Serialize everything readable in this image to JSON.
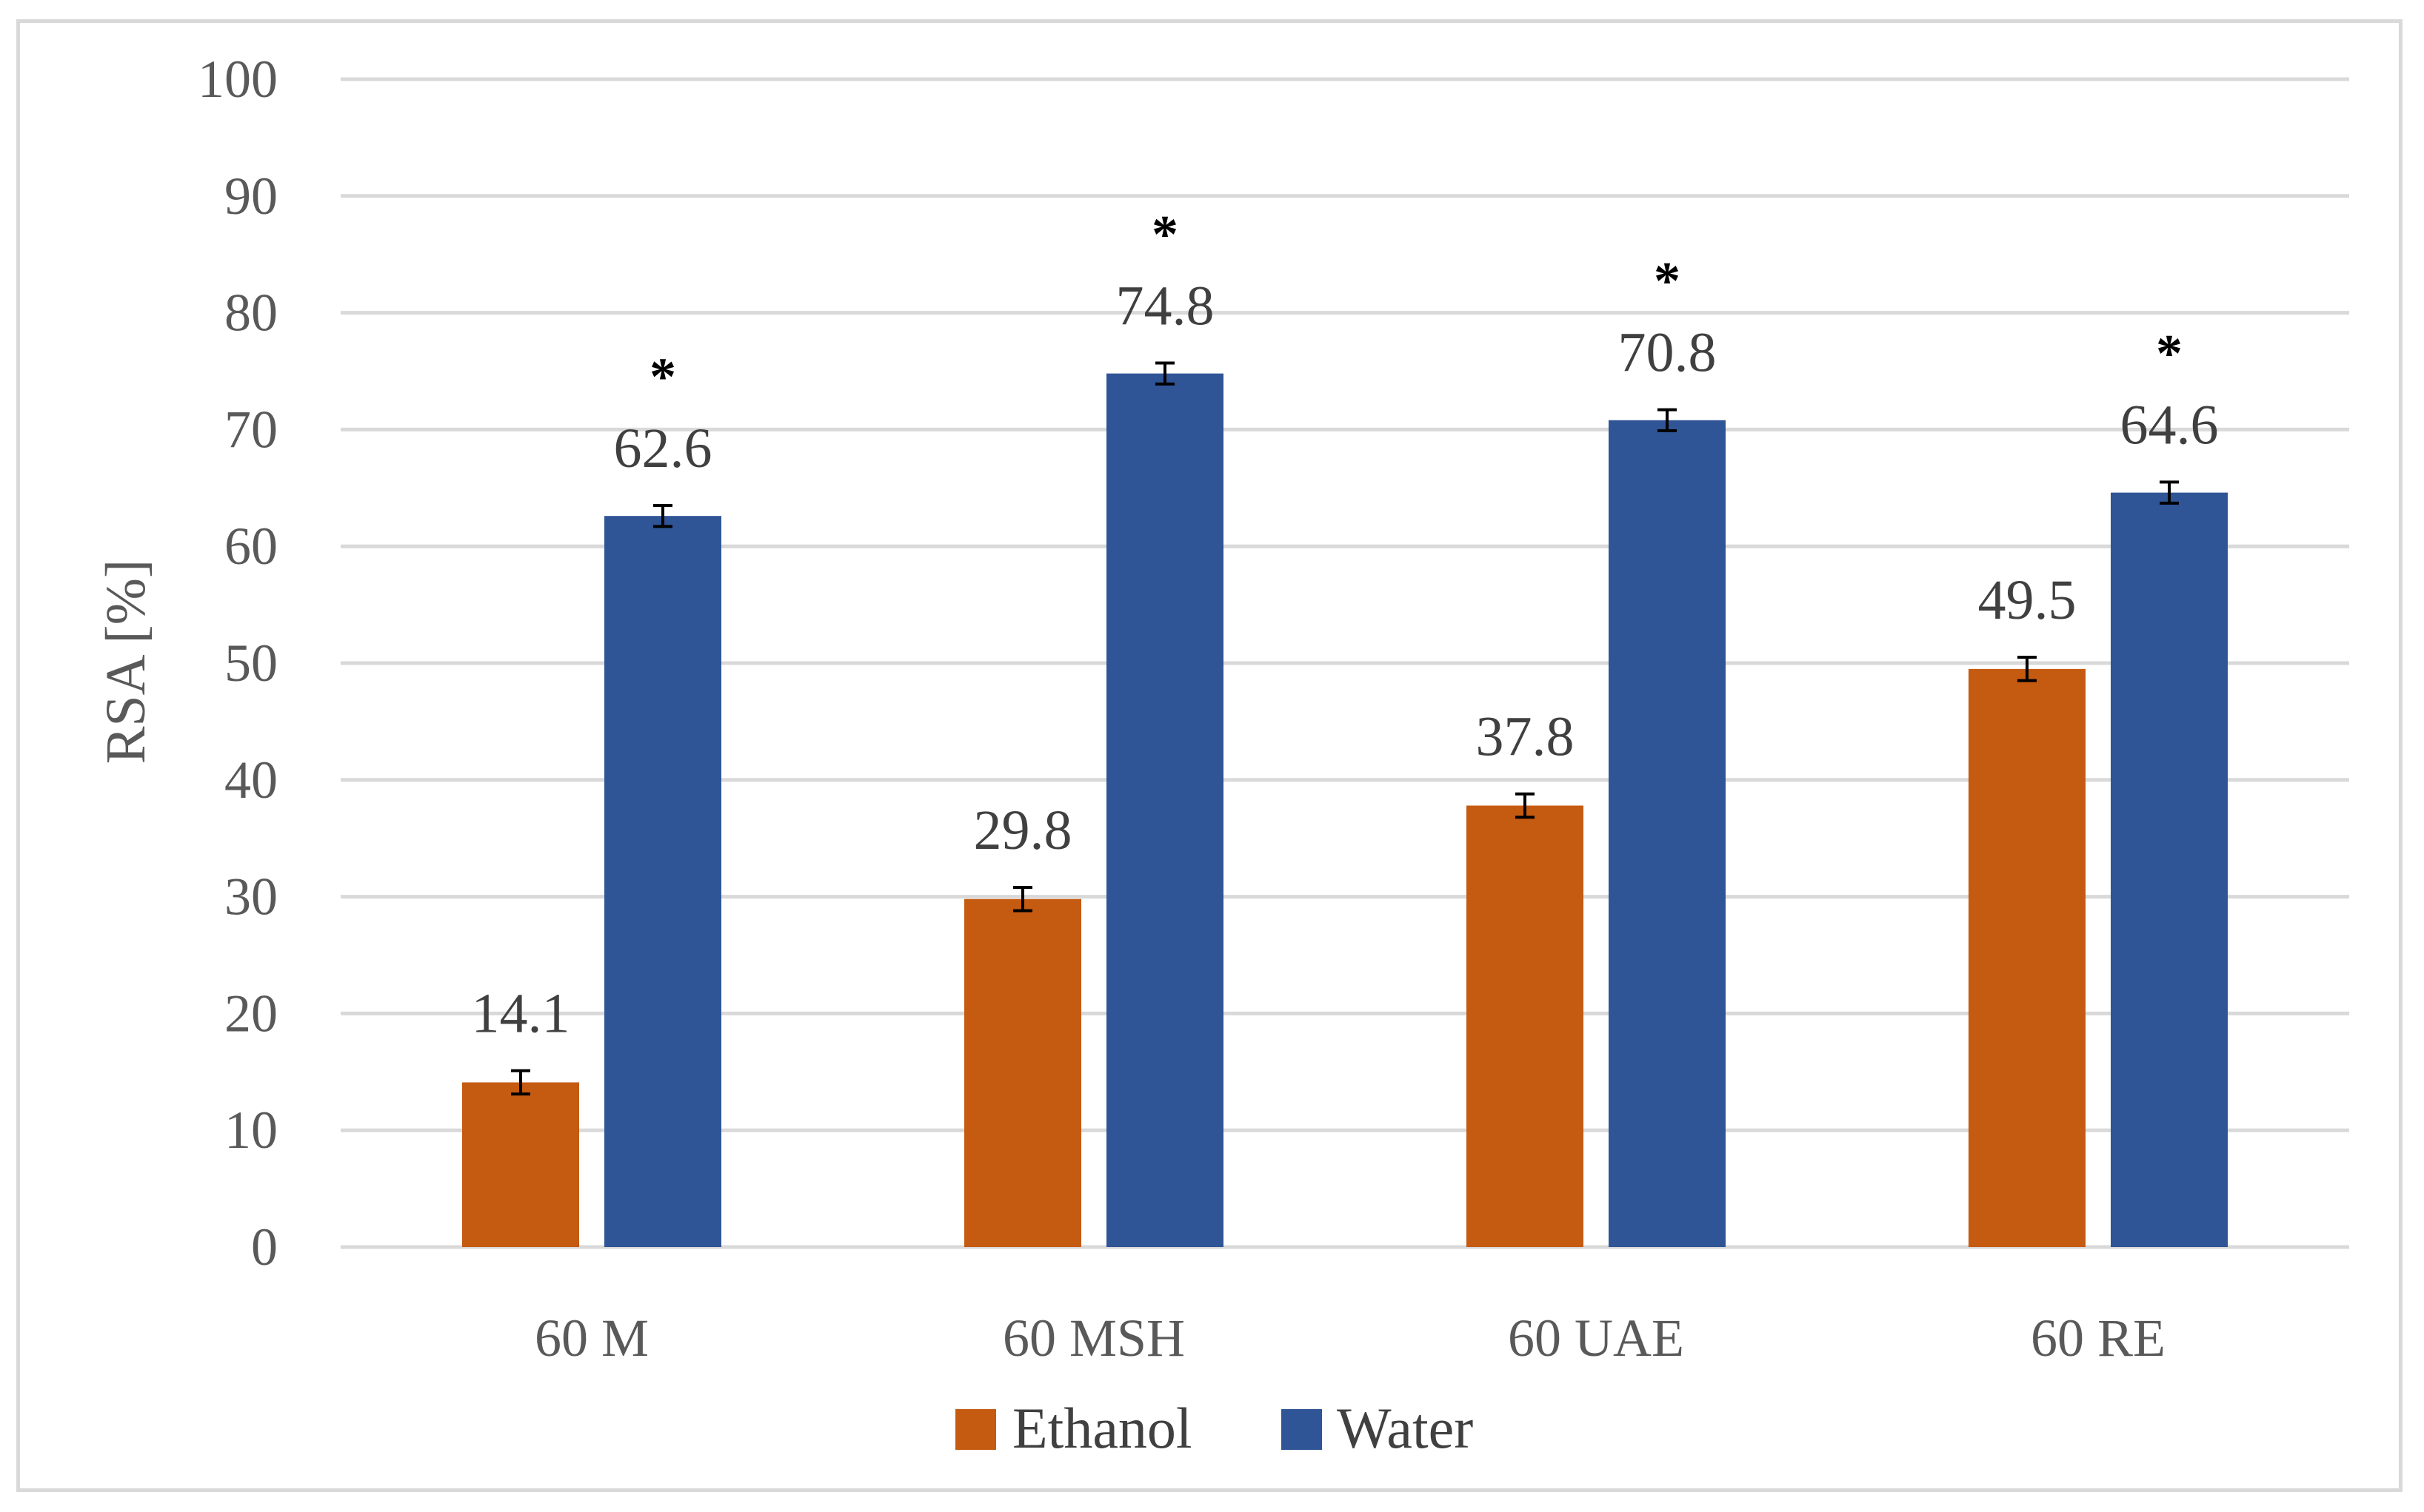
{
  "chart_data": {
    "type": "bar",
    "title": "",
    "xlabel": "",
    "ylabel": "RSA [%]",
    "ylim": [
      0,
      100
    ],
    "yticks": [
      0,
      10,
      20,
      30,
      40,
      50,
      60,
      70,
      80,
      90,
      100
    ],
    "grid": true,
    "legend_position": "bottom",
    "categories": [
      "60 M",
      "60 MSH",
      "60 UAE",
      "60 RE"
    ],
    "series": [
      {
        "name": "Ethanol",
        "color": "#c55a11",
        "values": [
          14.1,
          29.8,
          37.8,
          49.5
        ],
        "labels": [
          "14.1",
          "29.8",
          "37.8",
          "49.5"
        ],
        "errors": [
          1.0,
          1.0,
          1.0,
          1.0
        ],
        "significance": [
          "",
          "",
          "",
          ""
        ]
      },
      {
        "name": "Water",
        "color": "#2f5597",
        "values": [
          62.6,
          74.8,
          70.8,
          64.6
        ],
        "labels": [
          "62.6",
          "74.8",
          "70.8",
          "64.6"
        ],
        "errors": [
          0.9,
          0.9,
          0.9,
          0.9
        ],
        "significance": [
          "*",
          "*",
          "*",
          "*"
        ]
      }
    ]
  }
}
